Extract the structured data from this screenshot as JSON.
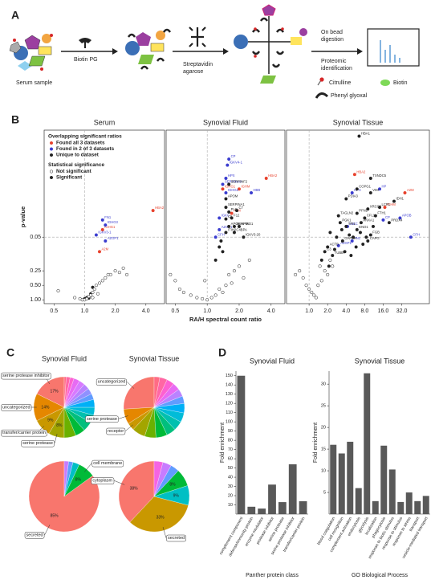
{
  "panel_labels": [
    "A",
    "B",
    "C",
    "D"
  ],
  "diagram": {
    "serum_sample": "Serum sample",
    "biotin_pg": "Biotin PG",
    "streptavidin": [
      "Streptavidin",
      "agarose"
    ],
    "digestion": [
      "On bead",
      "digestion"
    ],
    "identification": [
      "Proteomic",
      "identification"
    ],
    "citrulline": "Citrulline",
    "biotin": "Biotin",
    "phenyl_glyoxal": "Phenyl glyoxal"
  },
  "chart_data": [
    {
      "type": "scatter",
      "title": "Serum",
      "xscale": "log2",
      "yscale": "neglog10",
      "xlim": [
        0.4,
        6.1
      ],
      "ylim": [
        1.2,
        0.0003
      ],
      "xticks": [
        0.5,
        {
          "value": 1,
          "label": "1.0"
        },
        {
          "value": 2,
          "label": "2.0"
        },
        {
          "value": 4,
          "label": "4.0"
        }
      ],
      "yticks": [
        {
          "value": 1,
          "label": "1.00"
        },
        {
          "value": 0.5,
          "label": "0.50"
        },
        0.25,
        0.05
      ],
      "ylabel": "p-value",
      "vline": 1,
      "hline": 0.05,
      "legend": [
        {
          "title": "Overlapping significant ratios",
          "entries": [
            {
              "label": "Found all 3 datasets",
              "color": "#e8412c",
              "style": "filled"
            },
            {
              "label": "Found in 2 of 3 datasets",
              "color": "#3a3ccf",
              "style": "filled"
            },
            {
              "label": "Unique to dataset",
              "color": "#222222",
              "style": "filled"
            }
          ]
        },
        {
          "title": "Statistical significance",
          "entries": [
            {
              "label": "Not significant",
              "color": "#222222",
              "style": "open"
            },
            {
              "label": "Significant",
              "color": "#222222",
              "style": "filled"
            }
          ]
        }
      ],
      "series": [
        {
          "color": "#e8412c",
          "style": "filled",
          "x": [
            4.7,
            1.5,
            1.4
          ],
          "values": [
            0.014,
            0.035,
            0.1
          ],
          "labels": [
            "HBA2",
            "IGHG1",
            "A2M"
          ]
        },
        {
          "color": "#3a3ccf",
          "style": "filled",
          "x": [
            1.5,
            1.3,
            1.6,
            1.6
          ],
          "values": [
            0.022,
            0.045,
            0.06,
            0.028
          ],
          "labels": [
            "FN1",
            "IGKV3-1",
            "AZGP1",
            "IGHG3"
          ]
        },
        {
          "color": "#222222",
          "style": "filled",
          "x": [
            1.0,
            1.05,
            1.1,
            1.15,
            1.2
          ],
          "values": [
            0.95,
            0.9,
            0.92,
            0.75,
            0.55
          ]
        },
        {
          "color": "#222222",
          "style": "open",
          "x": [
            0.55,
            0.8,
            0.9,
            0.95,
            1.0,
            1.05,
            1.1,
            1.15,
            1.2,
            1.25,
            1.3,
            1.4,
            1.5,
            1.6,
            1.7,
            1.8,
            2.0,
            2.2,
            2.4,
            2.6,
            1.35,
            1.2
          ],
          "values": [
            0.65,
            0.9,
            0.95,
            1.0,
            1.0,
            0.95,
            0.85,
            0.8,
            0.7,
            0.6,
            0.5,
            0.45,
            0.4,
            0.35,
            0.3,
            0.3,
            0.25,
            0.27,
            0.22,
            0.3,
            0.75,
            0.9
          ]
        }
      ]
    },
    {
      "type": "scatter",
      "title": "Synovial Fluid",
      "xscale": "log2",
      "yscale": "neglog10",
      "xlim": [
        0.41,
        5.4
      ],
      "ylim": [
        1.2,
        0.0003
      ],
      "xticks": [
        0.5,
        {
          "value": 1,
          "label": "1.0"
        },
        {
          "value": 2,
          "label": "2.0"
        },
        {
          "value": 4,
          "label": "4.0"
        }
      ],
      "xlabel": "RA/H spectral count ratio",
      "vline": 1,
      "hline": 0.05,
      "series": [
        {
          "color": "#e8412c",
          "style": "filled",
          "x": [
            3.6,
            1.4,
            1.7,
            2.0
          ],
          "values": [
            0.003,
            0.005,
            0.016,
            0.005
          ],
          "labels": [
            "HBA2",
            "IGHG1",
            "A2M",
            "IGHM"
          ]
        },
        {
          "color": "#3a3ccf",
          "style": "filled",
          "x": [
            1.6,
            1.55,
            1.5,
            1.4,
            1.5,
            2.6,
            1.3,
            1.3,
            1.2
          ],
          "values": [
            0.0012,
            0.0016,
            0.003,
            0.004,
            0.006,
            0.006,
            0.02,
            0.035,
            0.05
          ],
          "labels": [
            "CP",
            "IGKV4-1",
            "HPX",
            "SERPINA3",
            "IGHG2",
            "HBB",
            "IGKC",
            "AZGP1",
            "CFH"
          ]
        },
        {
          "color": "#222222",
          "style": "filled",
          "x": [
            1.6,
            1.5,
            1.5,
            1.9,
            1.6,
            1.8,
            1.7,
            1.5,
            1.6,
            2.0,
            1.8,
            1.5,
            2.2
          ],
          "values": [
            0.004,
            0.008,
            0.012,
            0.014,
            0.015,
            0.03,
            0.02,
            0.021,
            0.03,
            0.03,
            0.04,
            0.04,
            0.05
          ],
          "labels": [
            "SERPINF2",
            "APOM",
            "SERPINA1",
            "C7",
            "PLG",
            "SERPIND1",
            "F12",
            "C5",
            "APOH",
            "AFM",
            "C4BPA",
            "ITIH2",
            "IGKV3-20"
          ]
        },
        {
          "color": "#222222",
          "style": "filled",
          "x": [
            1.3,
            1.4,
            1.2,
            1.35
          ],
          "values": [
            0.08,
            0.1,
            0.15,
            0.06
          ]
        },
        {
          "color": "#222222",
          "style": "open",
          "x": [
            0.45,
            0.5,
            0.55,
            0.6,
            0.7,
            0.8,
            0.9,
            1.0,
            1.1,
            1.2,
            1.3,
            1.5,
            1.6,
            1.8,
            2.0,
            2.5,
            1.4,
            0.95,
            1.7,
            2.2
          ],
          "values": [
            0.3,
            0.4,
            0.6,
            0.7,
            0.8,
            0.9,
            0.95,
            1.0,
            0.9,
            0.8,
            0.6,
            0.5,
            0.3,
            0.25,
            0.2,
            0.15,
            0.7,
            0.4,
            0.45,
            0.35
          ]
        }
      ]
    },
    {
      "type": "scatter",
      "title": "Synovial Tissue",
      "xscale": "log2",
      "yscale": "neglog10",
      "xlim": [
        0.43,
        90
      ],
      "ylim": [
        1.2,
        0.0003
      ],
      "xticks": [
        {
          "value": 1,
          "label": "1.0"
        },
        {
          "value": 2,
          "label": "2.0"
        },
        {
          "value": 4,
          "label": "4.0"
        },
        {
          "value": 8,
          "label": "8.0"
        },
        {
          "value": 16,
          "label": "16.0"
        },
        {
          "value": 32,
          "label": "32.0"
        }
      ],
      "vline": 1,
      "hline": 0.05,
      "series": [
        {
          "color": "#e8412c",
          "style": "filled",
          "x": [
            5.5,
            36,
            17
          ],
          "values": [
            0.0025,
            0.006,
            0.012
          ],
          "labels": [
            "HBA2",
            "A2M",
            "IGHM"
          ]
        },
        {
          "color": "#3a3ccf",
          "style": "filled",
          "x": [
            14,
            5,
            30,
            4.2,
            45,
            5,
            3,
            16
          ],
          "values": [
            0.005,
            0.006,
            0.02,
            0.03,
            0.05,
            0.06,
            0.075,
            0.022
          ],
          "labels": [
            "HP",
            "HPX",
            "APOB",
            "IGKC",
            "CFH",
            "FN1",
            "AZGP1",
            "CP"
          ]
        },
        {
          "color": "#222222",
          "style": "filled",
          "x": [
            6.5,
            10,
            6,
            10,
            4,
            24,
            14,
            9,
            6,
            3,
            8,
            3.2,
            7,
            12,
            4,
            6,
            20,
            10,
            2,
            9,
            3.5,
            1.8,
            2.4
          ],
          "values": [
            0.0004,
            0.003,
            0.005,
            0.006,
            0.008,
            0.009,
            0.012,
            0.013,
            0.016,
            0.018,
            0.02,
            0.025,
            0.025,
            0.018,
            0.03,
            0.035,
            0.025,
            0.045,
            0.08,
            0.06,
            0.06,
            0.1,
            0.12
          ],
          "labels": [
            "HBA1",
            "TXNDC5",
            "COPG1",
            "VIM",
            "PDIA3",
            "IDH1",
            "LCP1",
            "XRCC6",
            "PFN1",
            "TAGLN2",
            "CFL1",
            "PGK1",
            "ANXA1",
            "FTH1",
            "TPI1",
            "ENO1",
            "PRDX4",
            "FGB",
            "ACTB",
            "CAPG",
            "GAPDH",
            "C3",
            "TUBB"
          ]
        },
        {
          "color": "#222222",
          "style": "filled",
          "x": [
            2.2,
            2.8,
            3.4,
            4.5,
            5.2,
            6.8,
            7.5,
            11,
            2.6,
            3.8,
            5.8,
            8.5,
            1.6,
            2.1,
            4.8
          ],
          "values": [
            0.04,
            0.05,
            0.035,
            0.045,
            0.05,
            0.04,
            0.07,
            0.03,
            0.09,
            0.1,
            0.08,
            0.05,
            0.15,
            0.2,
            0.12
          ]
        },
        {
          "color": "#222222",
          "style": "open",
          "x": [
            0.6,
            0.7,
            0.8,
            0.9,
            1.0,
            1.1,
            1.2,
            1.3,
            1.4,
            1.6,
            2,
            2.4,
            1.8,
            2.2,
            1.5
          ],
          "values": [
            0.3,
            0.25,
            0.35,
            0.5,
            0.6,
            0.7,
            0.8,
            0.9,
            0.5,
            0.4,
            0.3,
            0.2,
            0.25,
            0.15,
            0.2
          ]
        }
      ]
    },
    {
      "type": "pie",
      "title": "Synovial Fluid",
      "categories": [
        "serine protease inhibitor",
        "uncategorized",
        "transfer/carrier protein",
        "serine protease",
        null,
        null,
        null,
        null,
        null,
        null,
        null,
        null,
        null,
        null,
        null,
        null,
        null,
        null
      ],
      "values": [
        17,
        14,
        9,
        8,
        6,
        5,
        5,
        4,
        4,
        4,
        3,
        3,
        3,
        3,
        3,
        2,
        2,
        1
      ],
      "value_labels": [
        "17%",
        "14%",
        "9%",
        "8%",
        null,
        null,
        null,
        null,
        null,
        null,
        null,
        null,
        null,
        null,
        null,
        null,
        null,
        null
      ],
      "colors": [
        "#f8766d",
        "#e58700",
        "#c99800",
        "#a3a500",
        "#6bb100",
        "#00ba38",
        "#00bf7d",
        "#00c0af",
        "#00bcd8",
        "#00b0f6",
        "#619cff",
        "#8f91ff",
        "#b983ff",
        "#d87aff",
        "#e76bf3",
        "#fd61d1",
        "#ff67a4",
        "#ff6c85"
      ]
    },
    {
      "type": "pie",
      "title": "Synovial Tissue",
      "categories": [
        "uncategorized",
        "serine protease",
        "receptor",
        null,
        null,
        null,
        null,
        null,
        null,
        null,
        null,
        null,
        null,
        null,
        null,
        null
      ],
      "values": [
        26,
        8,
        4,
        7,
        6,
        6,
        5,
        5,
        5,
        5,
        4,
        4,
        4,
        4,
        4,
        3
      ],
      "colors": [
        "#f8766d",
        "#e58700",
        "#c99800",
        "#a3a500",
        "#6bb100",
        "#00ba38",
        "#00bf7d",
        "#00c0af",
        "#00bcd8",
        "#00b0f6",
        "#619cff",
        "#b983ff",
        "#e76bf3",
        "#fd61d1",
        "#ff67a4",
        "#ff6c85"
      ]
    },
    {
      "type": "pie",
      "categories": [
        "secreted",
        "cell membrane",
        null,
        null,
        null
      ],
      "values": [
        85,
        8,
        3,
        2,
        2
      ],
      "value_labels": [
        "85%",
        "8%",
        null,
        null,
        null
      ],
      "colors": [
        "#f8766d",
        "#00ba38",
        "#00bfc4",
        "#619cff",
        "#c77cff"
      ]
    },
    {
      "type": "pie",
      "categories": [
        "cytoplasm",
        "secreted",
        null,
        null,
        null,
        null,
        null
      ],
      "values": [
        38,
        33,
        9,
        8,
        4,
        4,
        4
      ],
      "value_labels": [
        "38%",
        "33%",
        "9%",
        "8%",
        null,
        null,
        null
      ],
      "colors": [
        "#f8766d",
        "#c99800",
        "#00bfc4",
        "#00ba38",
        "#619cff",
        "#c77cff",
        "#f564e3"
      ]
    },
    {
      "type": "bar",
      "title": "Synovial Fluid",
      "xlabel": "Panther protein class",
      "ylabel": "Fold enrichment",
      "color": "#595959",
      "categories": [
        "complement component",
        "defense/immunity protein",
        "enzyme modulator",
        "protease inhibitor",
        "serine protease",
        "serine protease inhibitor",
        "transfer/carrier protein"
      ],
      "values": [
        150,
        8,
        6,
        32,
        13,
        54,
        14
      ],
      "ylim": [
        0,
        155
      ],
      "yticks": [
        10,
        20,
        30,
        40,
        50,
        60,
        70,
        80,
        90,
        100,
        110,
        120,
        130,
        140,
        150
      ]
    },
    {
      "type": "bar",
      "title": "Synovial Tissue",
      "xlabel": "GO Biological Process",
      "ylabel": "Fold enrichment",
      "color": "#595959",
      "categories": [
        "blood coagulation",
        "cell recognition",
        "complement activation",
        "endocytosis",
        "glycolysis",
        "localization",
        "phagocytosis",
        "response to biotic stimulus",
        "response to stimulus",
        "response to stress",
        "transport",
        "vesicle-mediated transport"
      ],
      "values": [
        16,
        14,
        16.7,
        6,
        32.5,
        3,
        15.8,
        10.3,
        2.8,
        5,
        3,
        4.2
      ],
      "ylim": [
        0,
        33
      ],
      "yticks": [
        5,
        10,
        15,
        20,
        25,
        30
      ]
    }
  ]
}
